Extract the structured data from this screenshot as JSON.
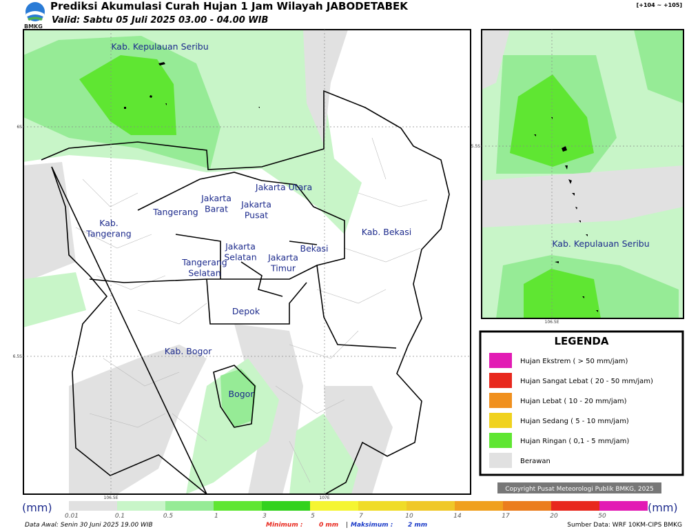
{
  "header": {
    "title": "Prediksi Akumulasi Curah Hujan 1 Jam Wilayah JABODETABEK",
    "subtitle": "Valid: Sabtu 05 Juli 2025 03.00 - 04.00 WIB",
    "logo_text": "BMKG",
    "extent": "[+104 ~ +105]"
  },
  "main_map": {
    "regions": [
      {
        "lines": [
          "Kab. Kepulauan Seribu"
        ]
      },
      {
        "lines": [
          "Jakarta Utara"
        ]
      },
      {
        "lines": [
          "Jakarta",
          "Barat"
        ]
      },
      {
        "lines": [
          "Jakarta",
          "Pusat"
        ]
      },
      {
        "lines": [
          "Tangerang"
        ]
      },
      {
        "lines": [
          "Kab.",
          "Tangerang"
        ]
      },
      {
        "lines": [
          "Jakarta",
          "Selatan"
        ]
      },
      {
        "lines": [
          "Jakarta",
          "Timur"
        ]
      },
      {
        "lines": [
          "Bekasi"
        ]
      },
      {
        "lines": [
          "Kab. Bekasi"
        ]
      },
      {
        "lines": [
          "Tangerang",
          "Selatan"
        ]
      },
      {
        "lines": [
          "Depok"
        ]
      },
      {
        "lines": [
          "Kab. Bogor"
        ]
      },
      {
        "lines": [
          "Bogor"
        ]
      }
    ],
    "lat_labels": [
      "6S",
      "6.5S"
    ],
    "lon_labels": [
      "106.5E",
      "107E"
    ]
  },
  "inset_map": {
    "regions": [
      {
        "lines": [
          "Kab. Kepulauan Seribu"
        ]
      }
    ],
    "lat_labels": [
      "5.5S"
    ],
    "lon_labels": [
      "106.5E"
    ]
  },
  "legend": {
    "title": "LEGENDA",
    "items": [
      {
        "label": "Hujan Ekstrem ( > 50 mm/jam)",
        "color": "#e21bb4"
      },
      {
        "label": "Hujan Sangat Lebat ( 20 - 50 mm/jam)",
        "color": "#e8281e"
      },
      {
        "label": "Hujan Lebat ( 10 - 20 mm/jam)",
        "color": "#f0901e"
      },
      {
        "label": "Hujan Sedang ( 5 - 10 mm/jam)",
        "color": "#f0d21e"
      },
      {
        "label": "Hujan Ringan ( 0,1 - 5 mm/jam)",
        "color": "#5fe632"
      },
      {
        "label": "Berawan",
        "color": "#e1e1e1"
      }
    ]
  },
  "copyright": "Copyright Pusat Meteorologi Publik BMKG, 2025",
  "colorbar": {
    "unit": "(mm)",
    "ticks": [
      "0.01",
      "0.1",
      "0.5",
      "1",
      "3",
      "5",
      "7",
      "10",
      "14",
      "17",
      "20",
      "50"
    ],
    "colors": [
      "#e1e1e1",
      "#c8f5c8",
      "#96eb96",
      "#5fe632",
      "#32d21e",
      "#f5f532",
      "#f0dc28",
      "#f0c828",
      "#f0a01e",
      "#eb7d1e",
      "#e8281e",
      "#e21bb4"
    ]
  },
  "footer": {
    "data_awal": "Data Awal: Senin 30 Juni 2025 19.00 WIB",
    "minimum_label": "Minimum :",
    "minimum": "0 mm",
    "separator": "|",
    "maximum_label": "Maksimum :",
    "maximum": "2 mm",
    "source": "Sumber Data: WRF 10KM-CIPS BMKG"
  }
}
